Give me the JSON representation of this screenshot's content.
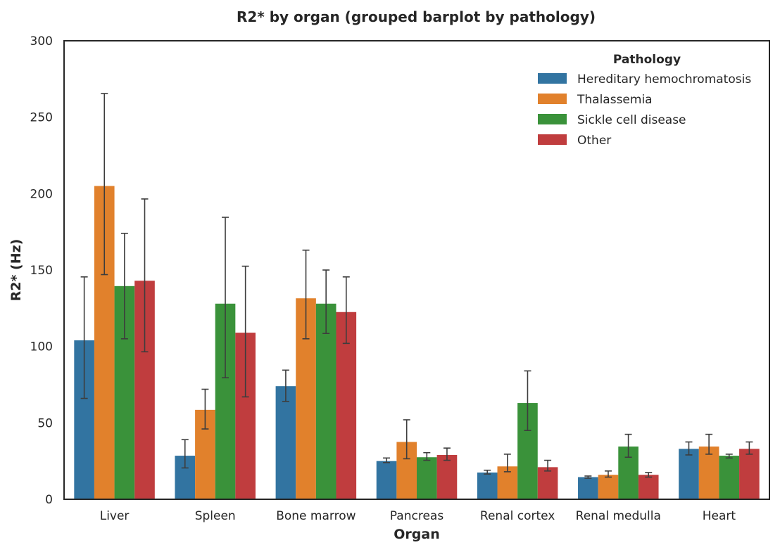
{
  "chart_data": {
    "type": "bar",
    "title": "R2* by organ (grouped barplot by pathology)",
    "xlabel": "Organ",
    "ylabel": "R2* (Hz)",
    "ylim": [
      0,
      300
    ],
    "yticks": [
      "0",
      "50",
      "100",
      "150",
      "200",
      "250",
      "300"
    ],
    "grid": false,
    "categories": [
      "Liver",
      "Spleen",
      "Bone marrow",
      "Pancreas",
      "Renal cortex",
      "Renal medulla",
      "Heart"
    ],
    "legend": {
      "title": "Pathology",
      "position": "top-right"
    },
    "series": [
      {
        "name": "Hereditary hemochromatosis",
        "color": "#3274a1",
        "values": [
          104,
          28.5,
          74,
          25,
          17.5,
          14.5,
          33
        ],
        "err_low": [
          66,
          20.5,
          64,
          24,
          16.5,
          13.8,
          29
        ],
        "err_high": [
          145.5,
          39,
          84.5,
          27,
          19,
          15.2,
          37.5
        ]
      },
      {
        "name": "Thalassemia",
        "color": "#e1812c",
        "values": [
          205,
          58.5,
          131.5,
          37.5,
          21.5,
          16,
          34.5
        ],
        "err_low": [
          147,
          46,
          105,
          26.5,
          18,
          14.5,
          29.5
        ],
        "err_high": [
          265.5,
          72,
          163,
          52,
          29.5,
          18.5,
          42.5
        ]
      },
      {
        "name": "Sickle cell disease",
        "color": "#3a923a",
        "values": [
          139.5,
          128,
          128,
          27.5,
          63,
          34.5,
          28.5
        ],
        "err_low": [
          105,
          79.5,
          108.5,
          25.5,
          45,
          27.5,
          27
        ],
        "err_high": [
          174,
          184.5,
          150,
          30.5,
          84,
          42.5,
          29.5
        ]
      },
      {
        "name": "Other",
        "color": "#c03d3e",
        "values": [
          143,
          109,
          122.5,
          29,
          21,
          16,
          33
        ],
        "err_low": [
          96.5,
          67,
          102,
          25.5,
          18.5,
          14.5,
          29.5
        ],
        "err_high": [
          196.5,
          152.5,
          145.5,
          33.5,
          25.5,
          17.5,
          37.5
        ]
      }
    ]
  }
}
